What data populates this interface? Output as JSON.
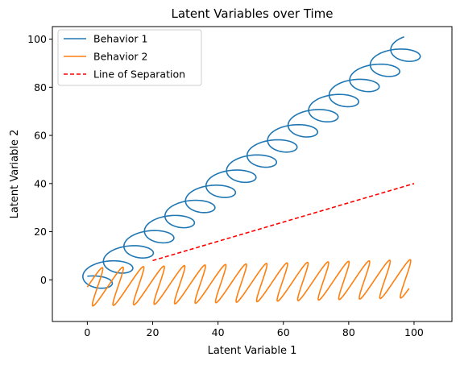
{
  "chart_data": {
    "type": "line",
    "title": "Latent Variables over Time",
    "xlabel": "Latent Variable 1",
    "ylabel": "Latent Variable 2",
    "xlim": [
      -10.7,
      111.6
    ],
    "ylim": [
      -17.3,
      105.2
    ],
    "xticks": [
      0,
      20,
      40,
      60,
      80,
      100
    ],
    "yticks": [
      0,
      20,
      40,
      60,
      80,
      100
    ],
    "grid": false,
    "legend_position": "top-left",
    "series": [
      {
        "name": "Behavior 1",
        "color": "#1f77b4",
        "style": "solid",
        "kind": "helix",
        "t_range": [
          0,
          100
        ],
        "x_formula": "t + 6*sin(t)",
        "y_formula": "t - 2.5 + 4*cos(t)",
        "samples": 1200
      },
      {
        "name": "Behavior 2",
        "color": "#ff7f0e",
        "style": "solid",
        "kind": "zigzag",
        "t_range": [
          0,
          100
        ],
        "x_formula": "t + 3*sin(t)",
        "y_formula": "8*sin(t) + 0.035*t - 3",
        "samples": 1200
      },
      {
        "name": "Line of Separation",
        "color": "#ff0000",
        "style": "dashed",
        "x": [
          20,
          100
        ],
        "y": [
          8,
          40
        ]
      }
    ]
  }
}
